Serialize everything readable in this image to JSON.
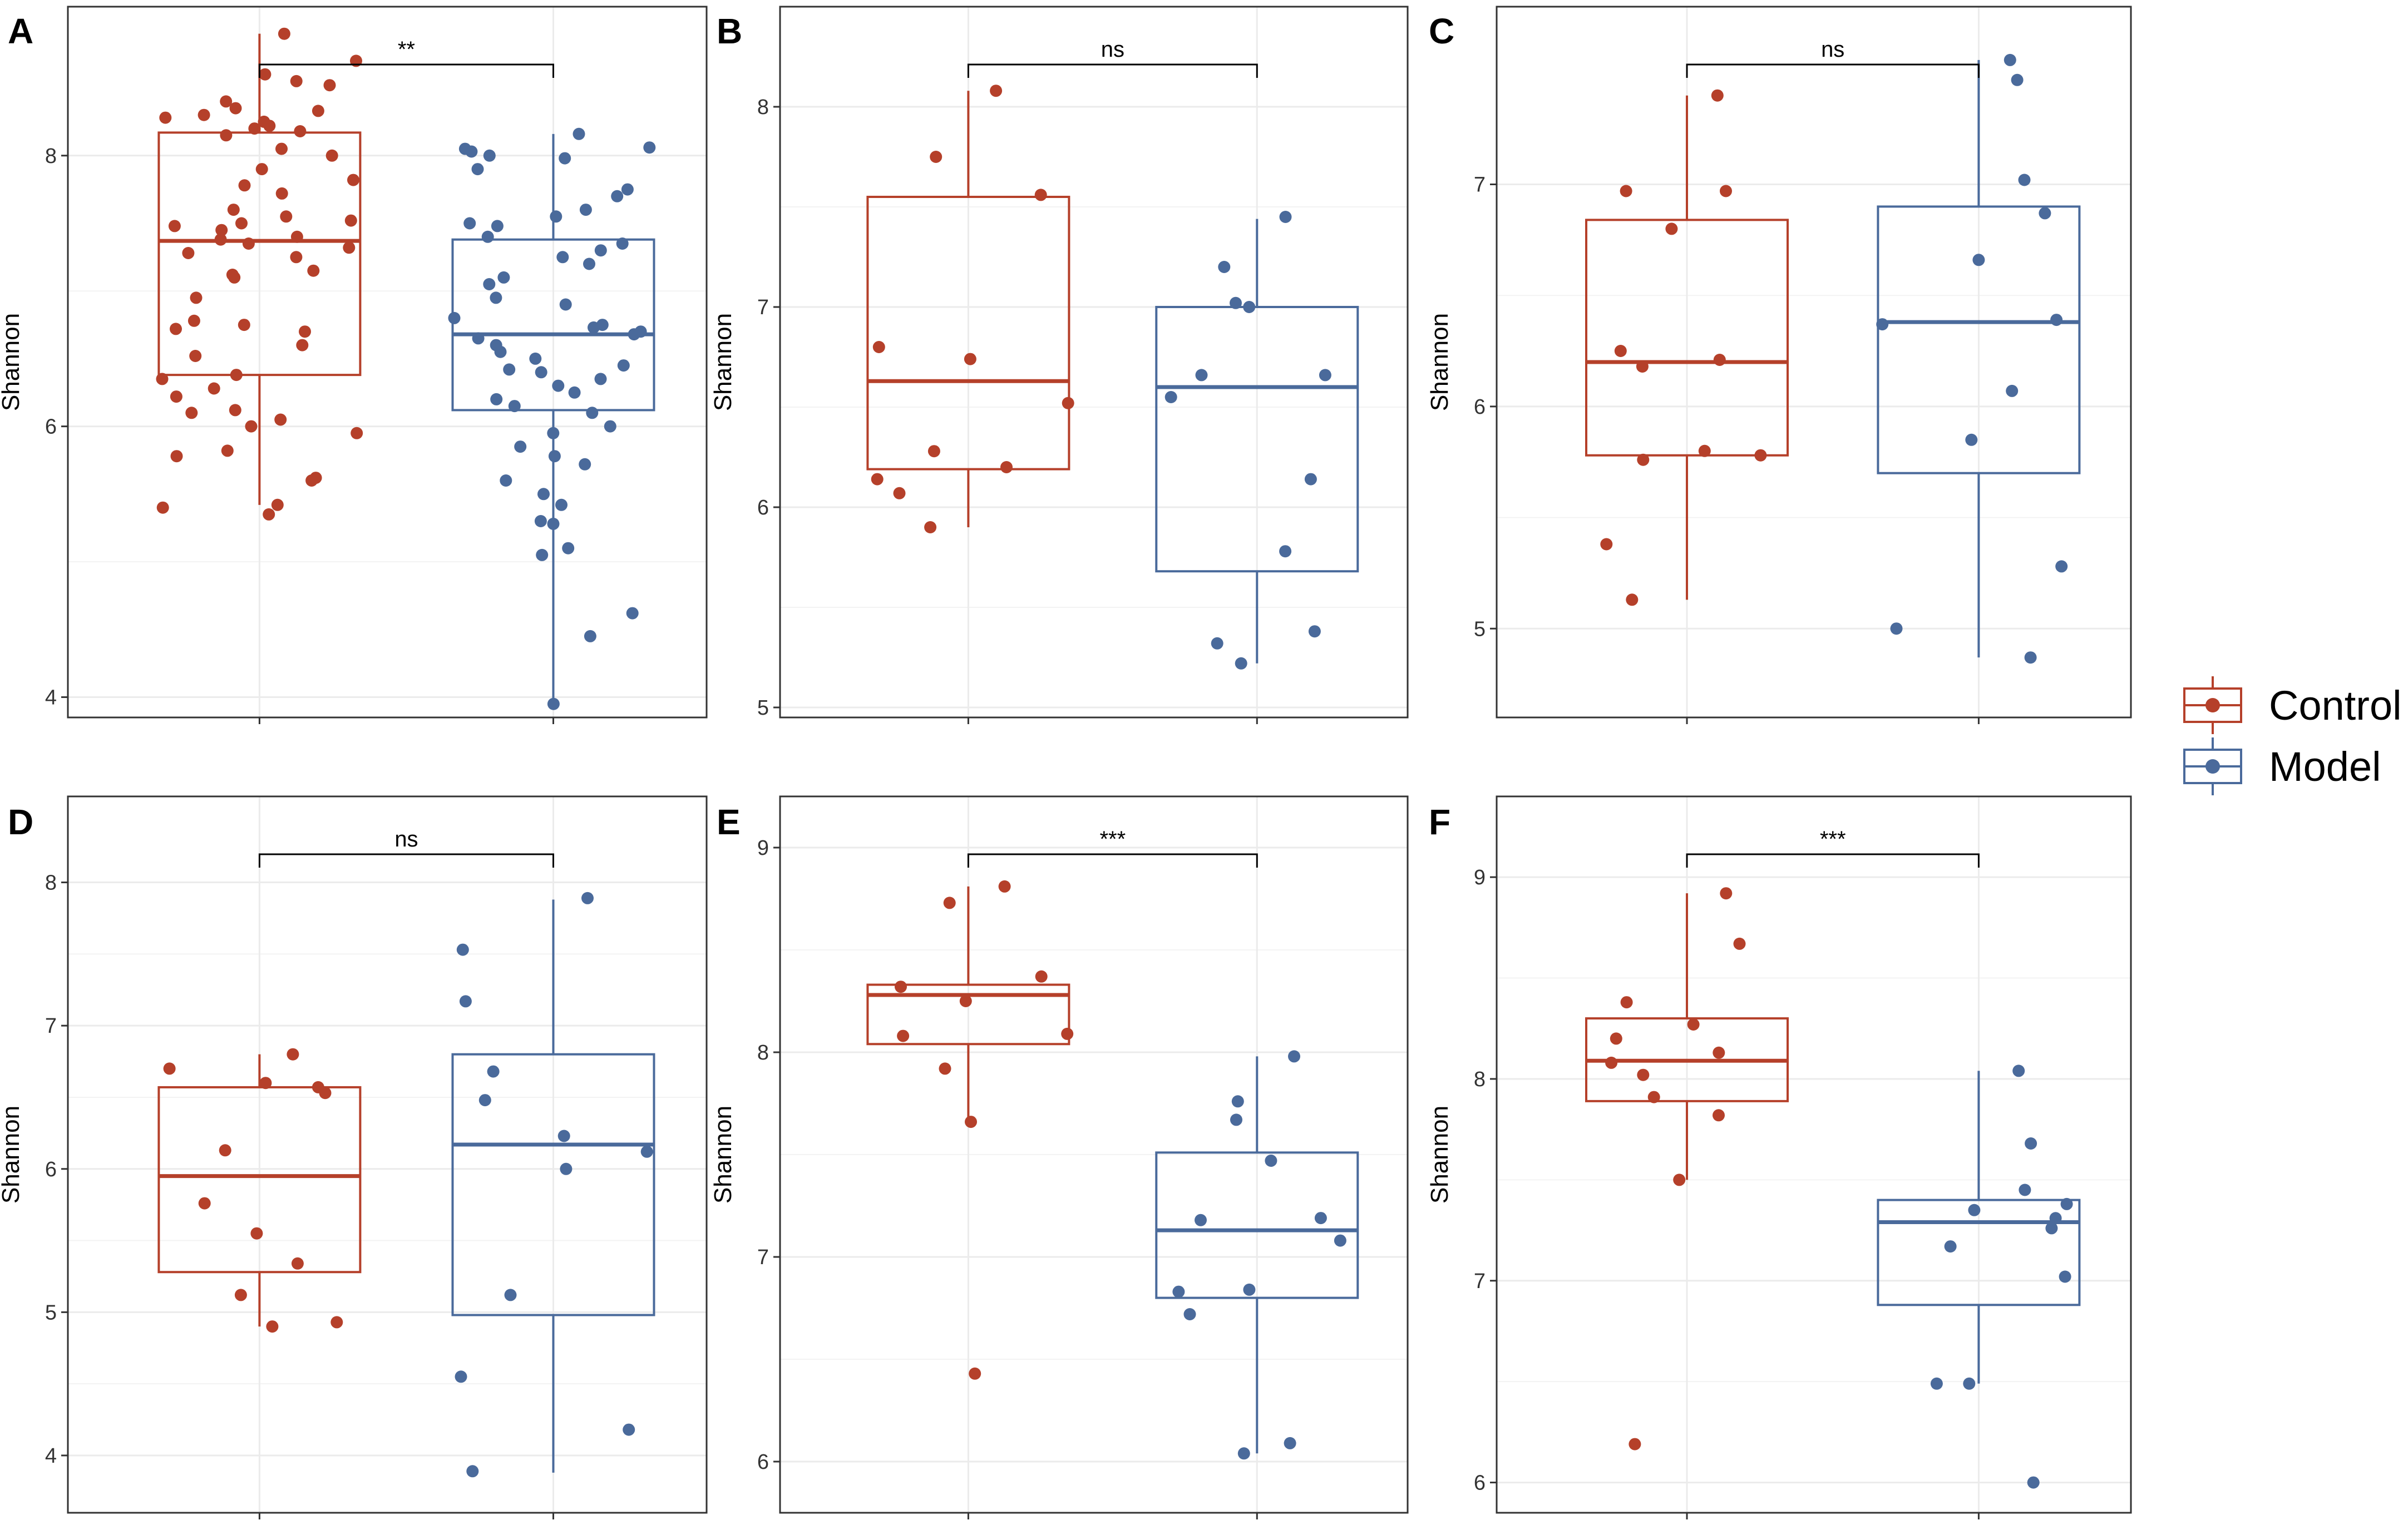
{
  "colors": {
    "control": "#B5402A",
    "model": "#4A6A9B",
    "grid": "#EBEBEB",
    "frame": "#333333"
  },
  "legend": {
    "position": "right",
    "items": [
      {
        "label": "Control",
        "color": "#B5402A"
      },
      {
        "label": "Model",
        "color": "#4A6A9B"
      }
    ]
  },
  "chart_data": [
    {
      "panel": "A",
      "type": "box",
      "ylabel": "Shannon",
      "ylim": [
        3.85,
        9.1
      ],
      "yticks": [
        4,
        6,
        8
      ],
      "significance": "**",
      "groups": [
        {
          "name": "Control",
          "q1": 6.38,
          "median": 7.37,
          "q3": 8.17,
          "whisker_low": 5.42,
          "whisker_high": 8.9,
          "points": [
            8.9,
            8.7,
            8.6,
            8.55,
            8.52,
            8.4,
            8.35,
            8.33,
            8.3,
            8.28,
            8.25,
            8.22,
            8.2,
            8.18,
            8.15,
            8.05,
            8.0,
            7.9,
            7.82,
            7.78,
            7.72,
            7.6,
            7.55,
            7.52,
            7.5,
            7.48,
            7.45,
            7.4,
            7.38,
            7.35,
            7.32,
            7.28,
            7.25,
            7.15,
            7.12,
            7.1,
            6.95,
            6.78,
            6.75,
            6.72,
            6.7,
            6.6,
            6.52,
            6.38,
            6.35,
            6.28,
            6.22,
            6.12,
            6.1,
            6.05,
            6.0,
            5.95,
            5.82,
            5.78,
            5.62,
            5.6,
            5.42,
            5.4,
            5.35
          ]
        },
        {
          "name": "Model",
          "q1": 6.12,
          "median": 6.68,
          "q3": 7.38,
          "whisker_low": 3.95,
          "whisker_high": 8.16,
          "points": [
            8.16,
            8.06,
            8.05,
            8.03,
            8.0,
            7.98,
            7.9,
            7.75,
            7.7,
            7.6,
            7.55,
            7.5,
            7.48,
            7.4,
            7.35,
            7.3,
            7.25,
            7.2,
            7.1,
            7.05,
            6.95,
            6.9,
            6.8,
            6.75,
            6.73,
            6.7,
            6.68,
            6.65,
            6.6,
            6.55,
            6.5,
            6.45,
            6.42,
            6.4,
            6.35,
            6.3,
            6.25,
            6.2,
            6.15,
            6.1,
            6.0,
            5.95,
            5.85,
            5.78,
            5.72,
            5.6,
            5.5,
            5.42,
            5.3,
            5.28,
            5.1,
            5.05,
            4.62,
            4.45,
            3.95
          ]
        }
      ]
    },
    {
      "panel": "B",
      "type": "box",
      "ylabel": "Shannon",
      "ylim": [
        4.95,
        8.5
      ],
      "yticks": [
        5,
        6,
        7,
        8
      ],
      "significance": "ns",
      "groups": [
        {
          "name": "Control",
          "q1": 6.19,
          "median": 6.63,
          "q3": 7.55,
          "whisker_low": 5.9,
          "whisker_high": 8.08,
          "points": [
            8.08,
            7.75,
            7.56,
            6.8,
            6.74,
            6.52,
            6.28,
            6.2,
            6.14,
            6.07,
            5.9
          ]
        },
        {
          "name": "Model",
          "q1": 5.68,
          "median": 6.6,
          "q3": 7.0,
          "whisker_low": 5.22,
          "whisker_high": 7.44,
          "points": [
            7.45,
            7.2,
            7.02,
            7.0,
            6.66,
            6.66,
            6.55,
            6.14,
            5.78,
            5.38,
            5.32,
            5.22
          ]
        }
      ]
    },
    {
      "panel": "C",
      "type": "box",
      "ylabel": "Shannon",
      "ylim": [
        4.6,
        7.8
      ],
      "yticks": [
        5,
        6,
        7
      ],
      "significance": "ns",
      "groups": [
        {
          "name": "Control",
          "q1": 5.78,
          "median": 6.2,
          "q3": 6.84,
          "whisker_low": 5.13,
          "whisker_high": 7.4,
          "points": [
            7.4,
            6.97,
            6.97,
            6.8,
            6.25,
            6.21,
            6.18,
            5.8,
            5.78,
            5.76,
            5.38,
            5.13
          ]
        },
        {
          "name": "Model",
          "q1": 5.7,
          "median": 6.38,
          "q3": 6.9,
          "whisker_low": 4.87,
          "whisker_high": 7.56,
          "points": [
            7.56,
            7.47,
            7.02,
            6.87,
            6.66,
            6.39,
            6.37,
            6.07,
            5.85,
            5.28,
            5.0,
            4.87
          ]
        }
      ]
    },
    {
      "panel": "D",
      "type": "box",
      "ylabel": "Shannon",
      "ylim": [
        3.6,
        8.6
      ],
      "yticks": [
        4,
        5,
        6,
        7,
        8
      ],
      "significance": "ns",
      "groups": [
        {
          "name": "Control",
          "q1": 5.28,
          "median": 5.95,
          "q3": 6.57,
          "whisker_low": 4.9,
          "whisker_high": 6.8,
          "points": [
            6.8,
            6.7,
            6.6,
            6.57,
            6.53,
            6.13,
            5.76,
            5.55,
            5.34,
            5.12,
            4.93,
            4.9
          ]
        },
        {
          "name": "Model",
          "q1": 4.98,
          "median": 6.17,
          "q3": 6.8,
          "whisker_low": 3.88,
          "whisker_high": 7.88,
          "points": [
            7.89,
            7.53,
            7.17,
            6.68,
            6.48,
            6.23,
            6.12,
            6.0,
            5.12,
            4.55,
            4.18,
            3.89
          ]
        }
      ]
    },
    {
      "panel": "E",
      "type": "box",
      "ylabel": "Shannon",
      "ylim": [
        5.75,
        9.25
      ],
      "yticks": [
        6,
        7,
        8,
        9
      ],
      "significance": "***",
      "groups": [
        {
          "name": "Control",
          "q1": 8.04,
          "median": 8.28,
          "q3": 8.33,
          "whisker_low": 7.66,
          "whisker_high": 8.81,
          "points": [
            8.81,
            8.73,
            8.37,
            8.32,
            8.25,
            8.09,
            8.08,
            7.92,
            7.66,
            6.43
          ]
        },
        {
          "name": "Model",
          "q1": 6.8,
          "median": 7.13,
          "q3": 7.51,
          "whisker_low": 6.04,
          "whisker_high": 7.98,
          "points": [
            7.98,
            7.76,
            7.67,
            7.47,
            7.19,
            7.18,
            7.08,
            6.84,
            6.83,
            6.72,
            6.09,
            6.04
          ]
        }
      ]
    },
    {
      "panel": "F",
      "type": "box",
      "ylabel": "Shannon",
      "ylim": [
        5.85,
        9.4
      ],
      "yticks": [
        6,
        7,
        8,
        9
      ],
      "significance": "***",
      "groups": [
        {
          "name": "Control",
          "q1": 7.89,
          "median": 8.09,
          "q3": 8.3,
          "whisker_low": 7.5,
          "whisker_high": 8.92,
          "points": [
            8.92,
            8.67,
            8.38,
            8.27,
            8.2,
            8.13,
            8.08,
            8.02,
            7.91,
            7.82,
            7.5,
            6.19
          ]
        },
        {
          "name": "Model",
          "q1": 6.88,
          "median": 7.29,
          "q3": 7.4,
          "whisker_low": 6.49,
          "whisker_high": 8.04,
          "points": [
            8.04,
            7.68,
            7.45,
            7.38,
            7.35,
            7.31,
            7.26,
            7.17,
            7.02,
            6.49,
            6.49,
            6.0
          ]
        }
      ]
    }
  ]
}
